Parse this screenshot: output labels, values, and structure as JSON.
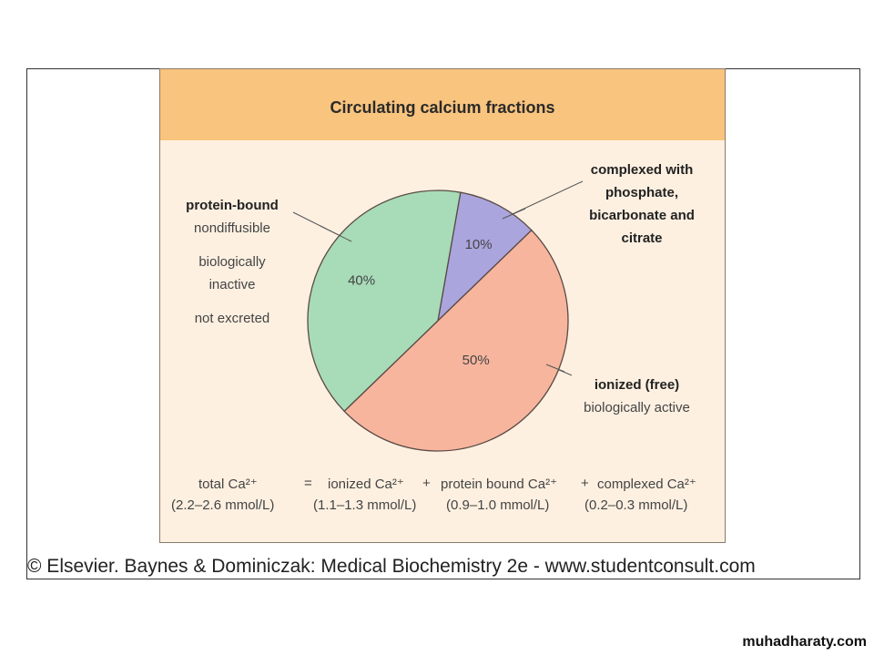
{
  "chart_data": {
    "type": "pie",
    "title": "Circulating calcium fractions",
    "slices": [
      {
        "name": "complexed with phosphate, bicarbonate and citrate",
        "value": 10,
        "label": "10%",
        "color": "#aaa5dd"
      },
      {
        "name": "ionized (free)",
        "value": 50,
        "label": "50%",
        "color": "#f7b59e"
      },
      {
        "name": "protein-bound",
        "value": 40,
        "label": "40%",
        "color": "#a8dbb8"
      }
    ]
  },
  "annotations": {
    "protein": {
      "head": "protein-bound",
      "lines": [
        "nondiffusible",
        "biologically",
        "inactive",
        "not excreted"
      ]
    },
    "complexed": {
      "lines": [
        "complexed with",
        "phosphate,",
        "bicarbonate and",
        "citrate"
      ]
    },
    "ionized": {
      "head": "ionized (free)",
      "sub": "biologically active"
    }
  },
  "equation": {
    "terms": [
      "total Ca²⁺",
      "=",
      "ionized Ca²⁺",
      "+",
      "protein bound Ca²⁺",
      "+",
      "complexed Ca²⁺"
    ],
    "ranges": [
      "(2.2–2.6 mmol/L)",
      "(1.1–1.3 mmol/L)",
      "(0.9–1.0 mmol/L)",
      "(0.2–0.3 mmol/L)"
    ]
  },
  "credit": "© Elsevier. Baynes & Dominiczak: Medical Biochemistry 2e - www.studentconsult.com",
  "watermark": "muhadharaty.com"
}
